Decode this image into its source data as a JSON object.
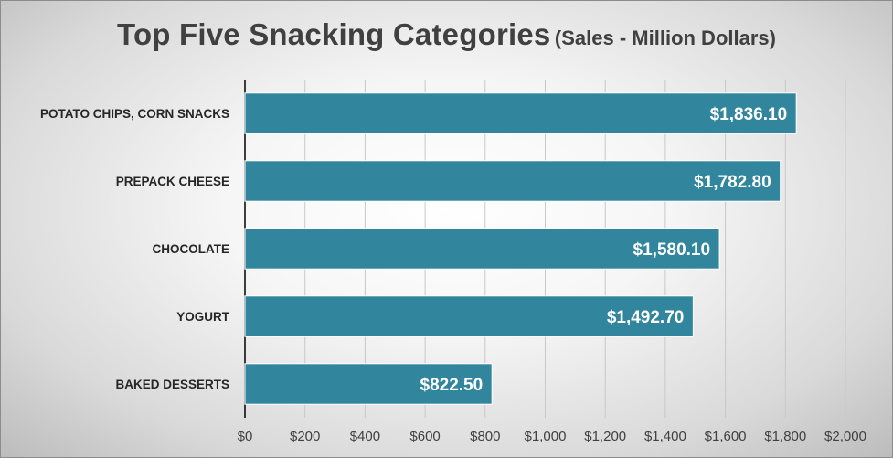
{
  "chart_data": {
    "type": "bar",
    "orientation": "horizontal",
    "title": "Top Five Snacking Categories",
    "subtitle": "(Sales - Million Dollars)",
    "categories": [
      "POTATO CHIPS, CORN SNACKS",
      "PREPACK CHEESE",
      "CHOCOLATE",
      "YOGURT",
      "BAKED DESSERTS"
    ],
    "values": [
      1836.1,
      1782.8,
      1580.1,
      1492.7,
      822.5
    ],
    "data_labels": [
      "$1,836.10",
      "$1,782.80",
      "$1,580.10",
      "$1,492.70",
      "$822.50"
    ],
    "x_ticks": [
      0,
      200,
      400,
      600,
      800,
      1000,
      1200,
      1400,
      1600,
      1800,
      2000
    ],
    "x_tick_labels": [
      "$0",
      "$200",
      "$400",
      "$600",
      "$800",
      "$1,000",
      "$1,200",
      "$1,400",
      "$1,600",
      "$1,800",
      "$2,000"
    ],
    "xlim": [
      0,
      2000
    ],
    "xlabel": "",
    "ylabel": "",
    "grid": true,
    "legend": "none",
    "bar_color": "#31859c",
    "bar_border_color": "#ffffff",
    "grid_color": "#c8c8c8",
    "axis_color": "#000000"
  }
}
